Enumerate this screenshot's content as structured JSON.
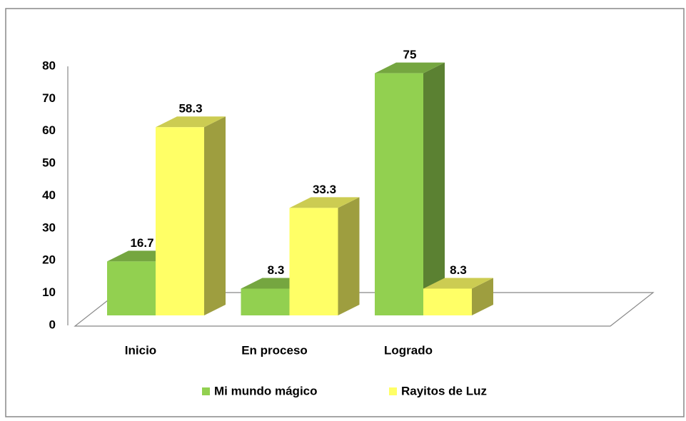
{
  "chart_data": {
    "type": "bar3d",
    "categories": [
      "Inicio",
      "En proceso",
      "Logrado"
    ],
    "series": [
      {
        "name": "Mi mundo mágico",
        "color": "#92d050",
        "values": [
          16.7,
          8.3,
          75
        ]
      },
      {
        "name": "Rayitos de Luz",
        "color": "#ffff66",
        "values": [
          58.3,
          33.3,
          8.3
        ]
      }
    ],
    "ylim": [
      0,
      80
    ],
    "yticks": [
      0,
      10,
      20,
      30,
      40,
      50,
      60,
      70,
      80
    ],
    "legend": "bottom"
  }
}
